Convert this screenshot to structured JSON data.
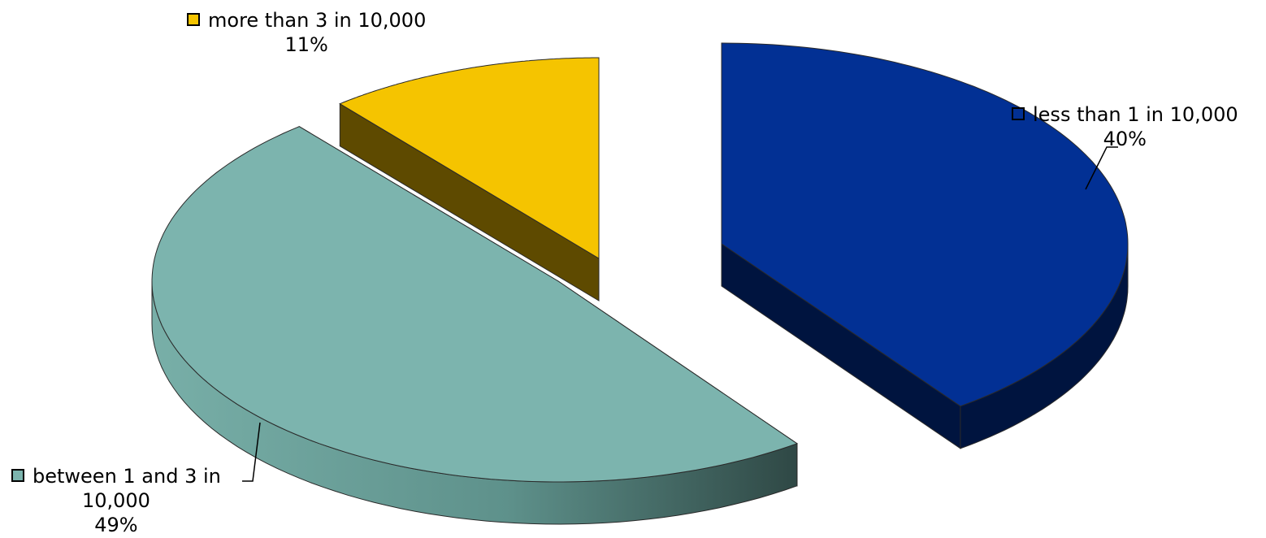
{
  "chart_data": {
    "type": "pie",
    "style": "3d-exploded",
    "legend_placement": "data-labels",
    "slices": [
      {
        "label": "less than 1 in 10,000",
        "value": 40,
        "percent_label": "40%",
        "color": "#023094",
        "side_color": "#00143F"
      },
      {
        "label_line1": "between 1 and 3 in",
        "label_line2": "10,000",
        "label": "between 1 and 3 in 10,000",
        "value": 49,
        "percent_label": "49%",
        "color": "#7CB4AE",
        "side_color": "#5A8E88"
      },
      {
        "label": "more than 3 in 10,000",
        "value": 11,
        "percent_label": "11%",
        "color": "#F5C400",
        "side_color": "#5E4A00"
      }
    ]
  }
}
